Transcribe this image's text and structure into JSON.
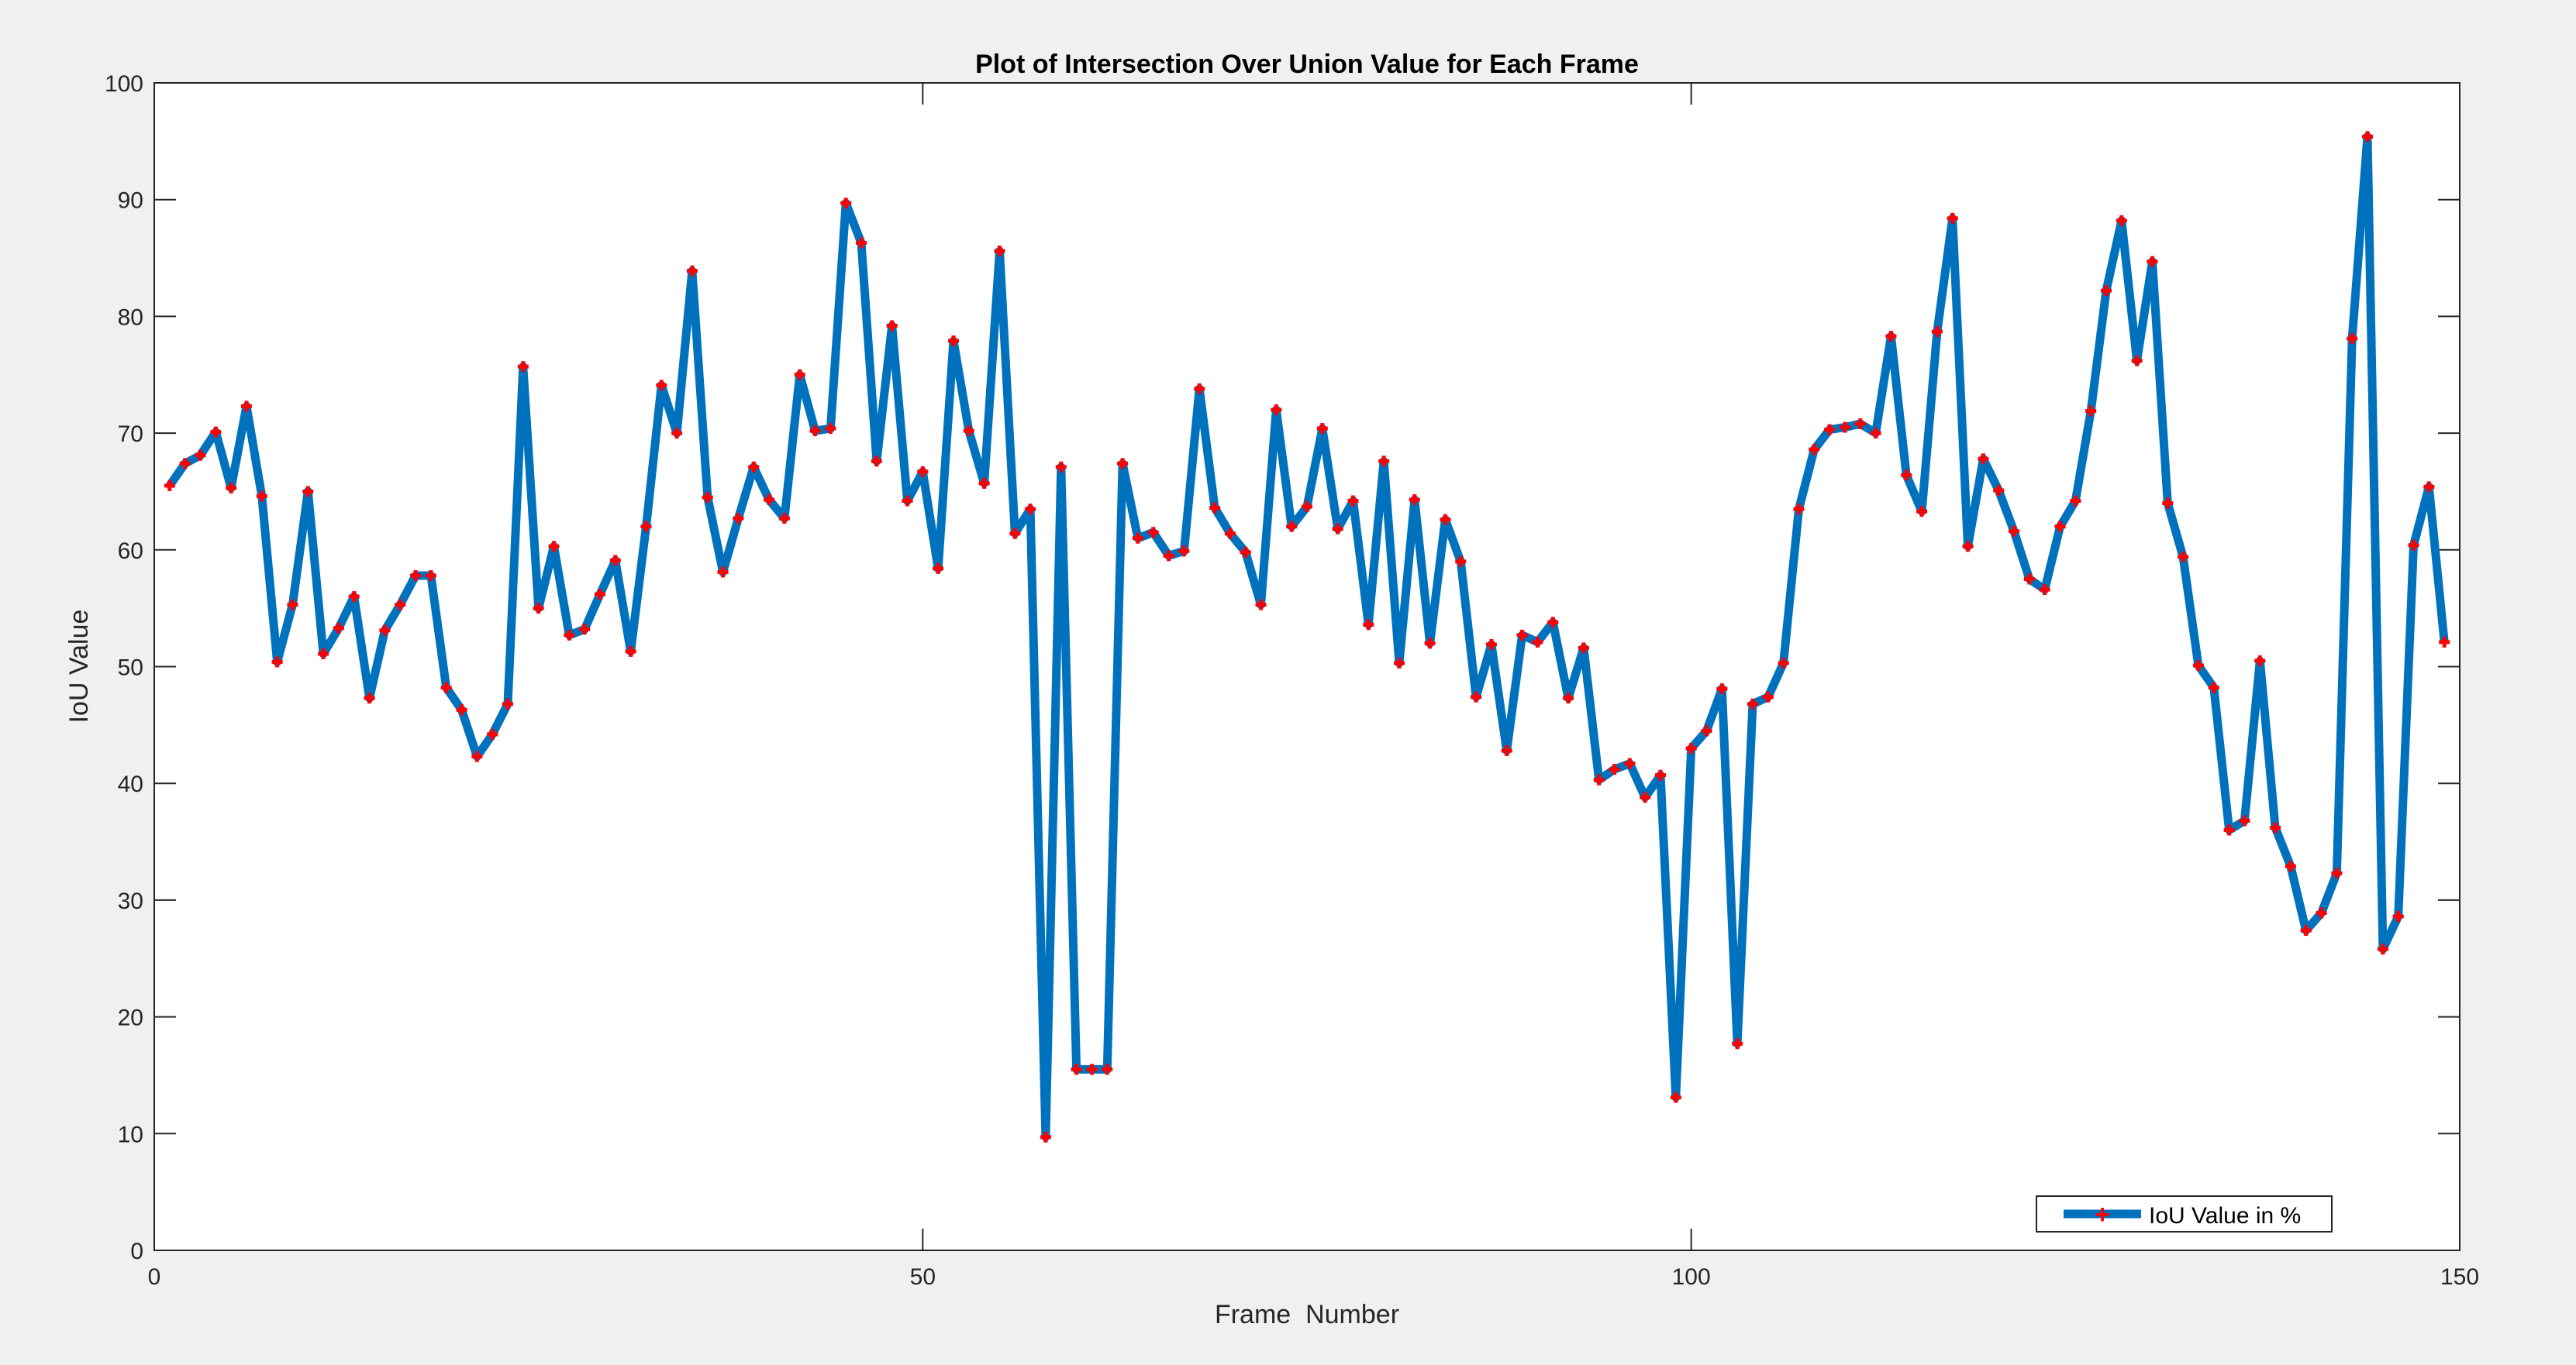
{
  "chart_data": {
    "type": "line",
    "title": "Plot of Intersection Over Union Value for Each Frame",
    "xlabel": "Frame  Number",
    "ylabel": "IoU Value",
    "xlim": [
      0,
      150
    ],
    "ylim": [
      0,
      100
    ],
    "xticks": [
      0,
      50,
      100,
      150
    ],
    "yticks": [
      0,
      10,
      20,
      30,
      40,
      50,
      60,
      70,
      80,
      90,
      100
    ],
    "grid": false,
    "legend_position": "bottom-right",
    "series": [
      {
        "name": "IoU Value in %",
        "color": "#0072bd",
        "marker_color": "#ff0000",
        "x": [
          1,
          2,
          3,
          4,
          5,
          6,
          7,
          8,
          9,
          10,
          11,
          12,
          13,
          14,
          15,
          16,
          17,
          18,
          19,
          20,
          21,
          22,
          23,
          24,
          25,
          26,
          27,
          28,
          29,
          30,
          31,
          32,
          33,
          34,
          35,
          36,
          37,
          38,
          39,
          40,
          41,
          42,
          43,
          44,
          45,
          46,
          47,
          48,
          49,
          50,
          51,
          52,
          53,
          54,
          55,
          56,
          57,
          58,
          59,
          60,
          61,
          62,
          63,
          64,
          65,
          66,
          67,
          68,
          69,
          70,
          71,
          72,
          73,
          74,
          75,
          76,
          77,
          78,
          79,
          80,
          81,
          82,
          83,
          84,
          85,
          86,
          87,
          88,
          89,
          90,
          91,
          92,
          93,
          94,
          95,
          96,
          97,
          98,
          99,
          100,
          101,
          102,
          103,
          104,
          105,
          106,
          107,
          108,
          109,
          110,
          111,
          112,
          113,
          114,
          115,
          116,
          117,
          118,
          119,
          120,
          121,
          122,
          123,
          124,
          125,
          126,
          127,
          128,
          129,
          130,
          131,
          132,
          133,
          134,
          135,
          136,
          137,
          138,
          139,
          140,
          141,
          142,
          143,
          144,
          145,
          146,
          147,
          148,
          149
        ],
        "values": [
          65.5,
          67.4,
          68.1,
          70.1,
          65.3,
          72.3,
          64.6,
          50.4,
          55.3,
          65.0,
          51.1,
          53.3,
          56.0,
          47.3,
          53.1,
          55.3,
          57.8,
          57.8,
          48.2,
          46.3,
          42.3,
          44.2,
          46.8,
          75.7,
          55.0,
          60.3,
          52.7,
          53.2,
          56.2,
          59.1,
          51.3,
          62.0,
          74.1,
          70.0,
          83.9,
          64.5,
          58.1,
          62.7,
          67.1,
          64.3,
          62.7,
          75.0,
          70.2,
          70.4,
          89.7,
          86.3,
          67.6,
          79.2,
          64.2,
          66.7,
          58.4,
          77.9,
          70.2,
          65.7,
          85.6,
          61.4,
          63.5,
          9.7,
          67.1,
          15.5,
          15.5,
          15.5,
          67.4,
          61.0,
          61.5,
          59.5,
          59.9,
          73.8,
          63.6,
          61.4,
          59.8,
          55.3,
          72.0,
          62.0,
          63.7,
          70.4,
          61.8,
          64.2,
          53.6,
          67.6,
          50.3,
          64.3,
          52.0,
          62.6,
          59.0,
          47.4,
          51.9,
          42.8,
          52.7,
          52.1,
          53.8,
          47.3,
          51.6,
          40.3,
          41.2,
          41.7,
          38.8,
          40.7,
          13.1,
          43.0,
          44.5,
          48.1,
          17.7,
          46.8,
          47.4,
          50.3,
          63.5,
          68.6,
          70.3,
          70.5,
          70.8,
          70.0,
          78.3,
          66.4,
          63.3,
          78.7,
          88.4,
          60.3,
          67.8,
          65.1,
          61.6,
          57.5,
          56.6,
          62.0,
          64.2,
          71.9,
          82.2,
          88.2,
          76.2,
          84.7,
          64.0,
          59.4,
          50.1,
          48.2,
          36.0,
          36.8,
          50.5,
          36.2,
          32.9,
          27.4,
          28.9,
          32.3,
          78.1,
          95.4,
          25.8,
          28.6,
          60.4,
          65.4,
          52.1
        ]
      }
    ]
  }
}
